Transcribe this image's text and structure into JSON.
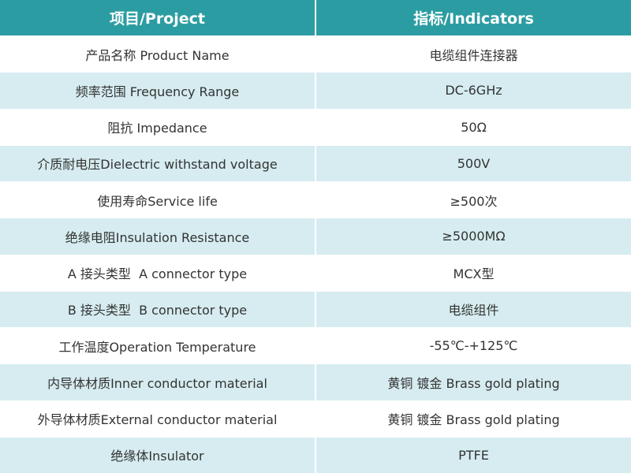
{
  "table": {
    "header": [
      "项目/Project",
      "指标/Indicators"
    ],
    "rows": [
      [
        "产品名称 Product Name",
        "电缆组件连接器"
      ],
      [
        "频率范围 Frequency Range",
        "DC-6GHz"
      ],
      [
        "阻抗 Impedance",
        "50Ω"
      ],
      [
        "介质耐电压Dielectric withstand voltage",
        "500V"
      ],
      [
        "使用寿命Service life",
        "≥500次"
      ],
      [
        "绝缘电阻Insulation Resistance",
        "≥5000MΩ"
      ],
      [
        "A 接头类型  A connector type",
        "MCX型"
      ],
      [
        "B 接头类型  B connector type",
        "电缆组件"
      ],
      [
        "工作温度Operation Temperature",
        "-55℃-+125℃"
      ],
      [
        "内导体材质Inner conductor material",
        "黄铜 镀金 Brass gold plating"
      ],
      [
        "外导体材质External conductor material",
        "黄铜 镀金 Brass gold plating"
      ],
      [
        "绝缘体Insulator",
        "PTFE"
      ]
    ]
  }
}
